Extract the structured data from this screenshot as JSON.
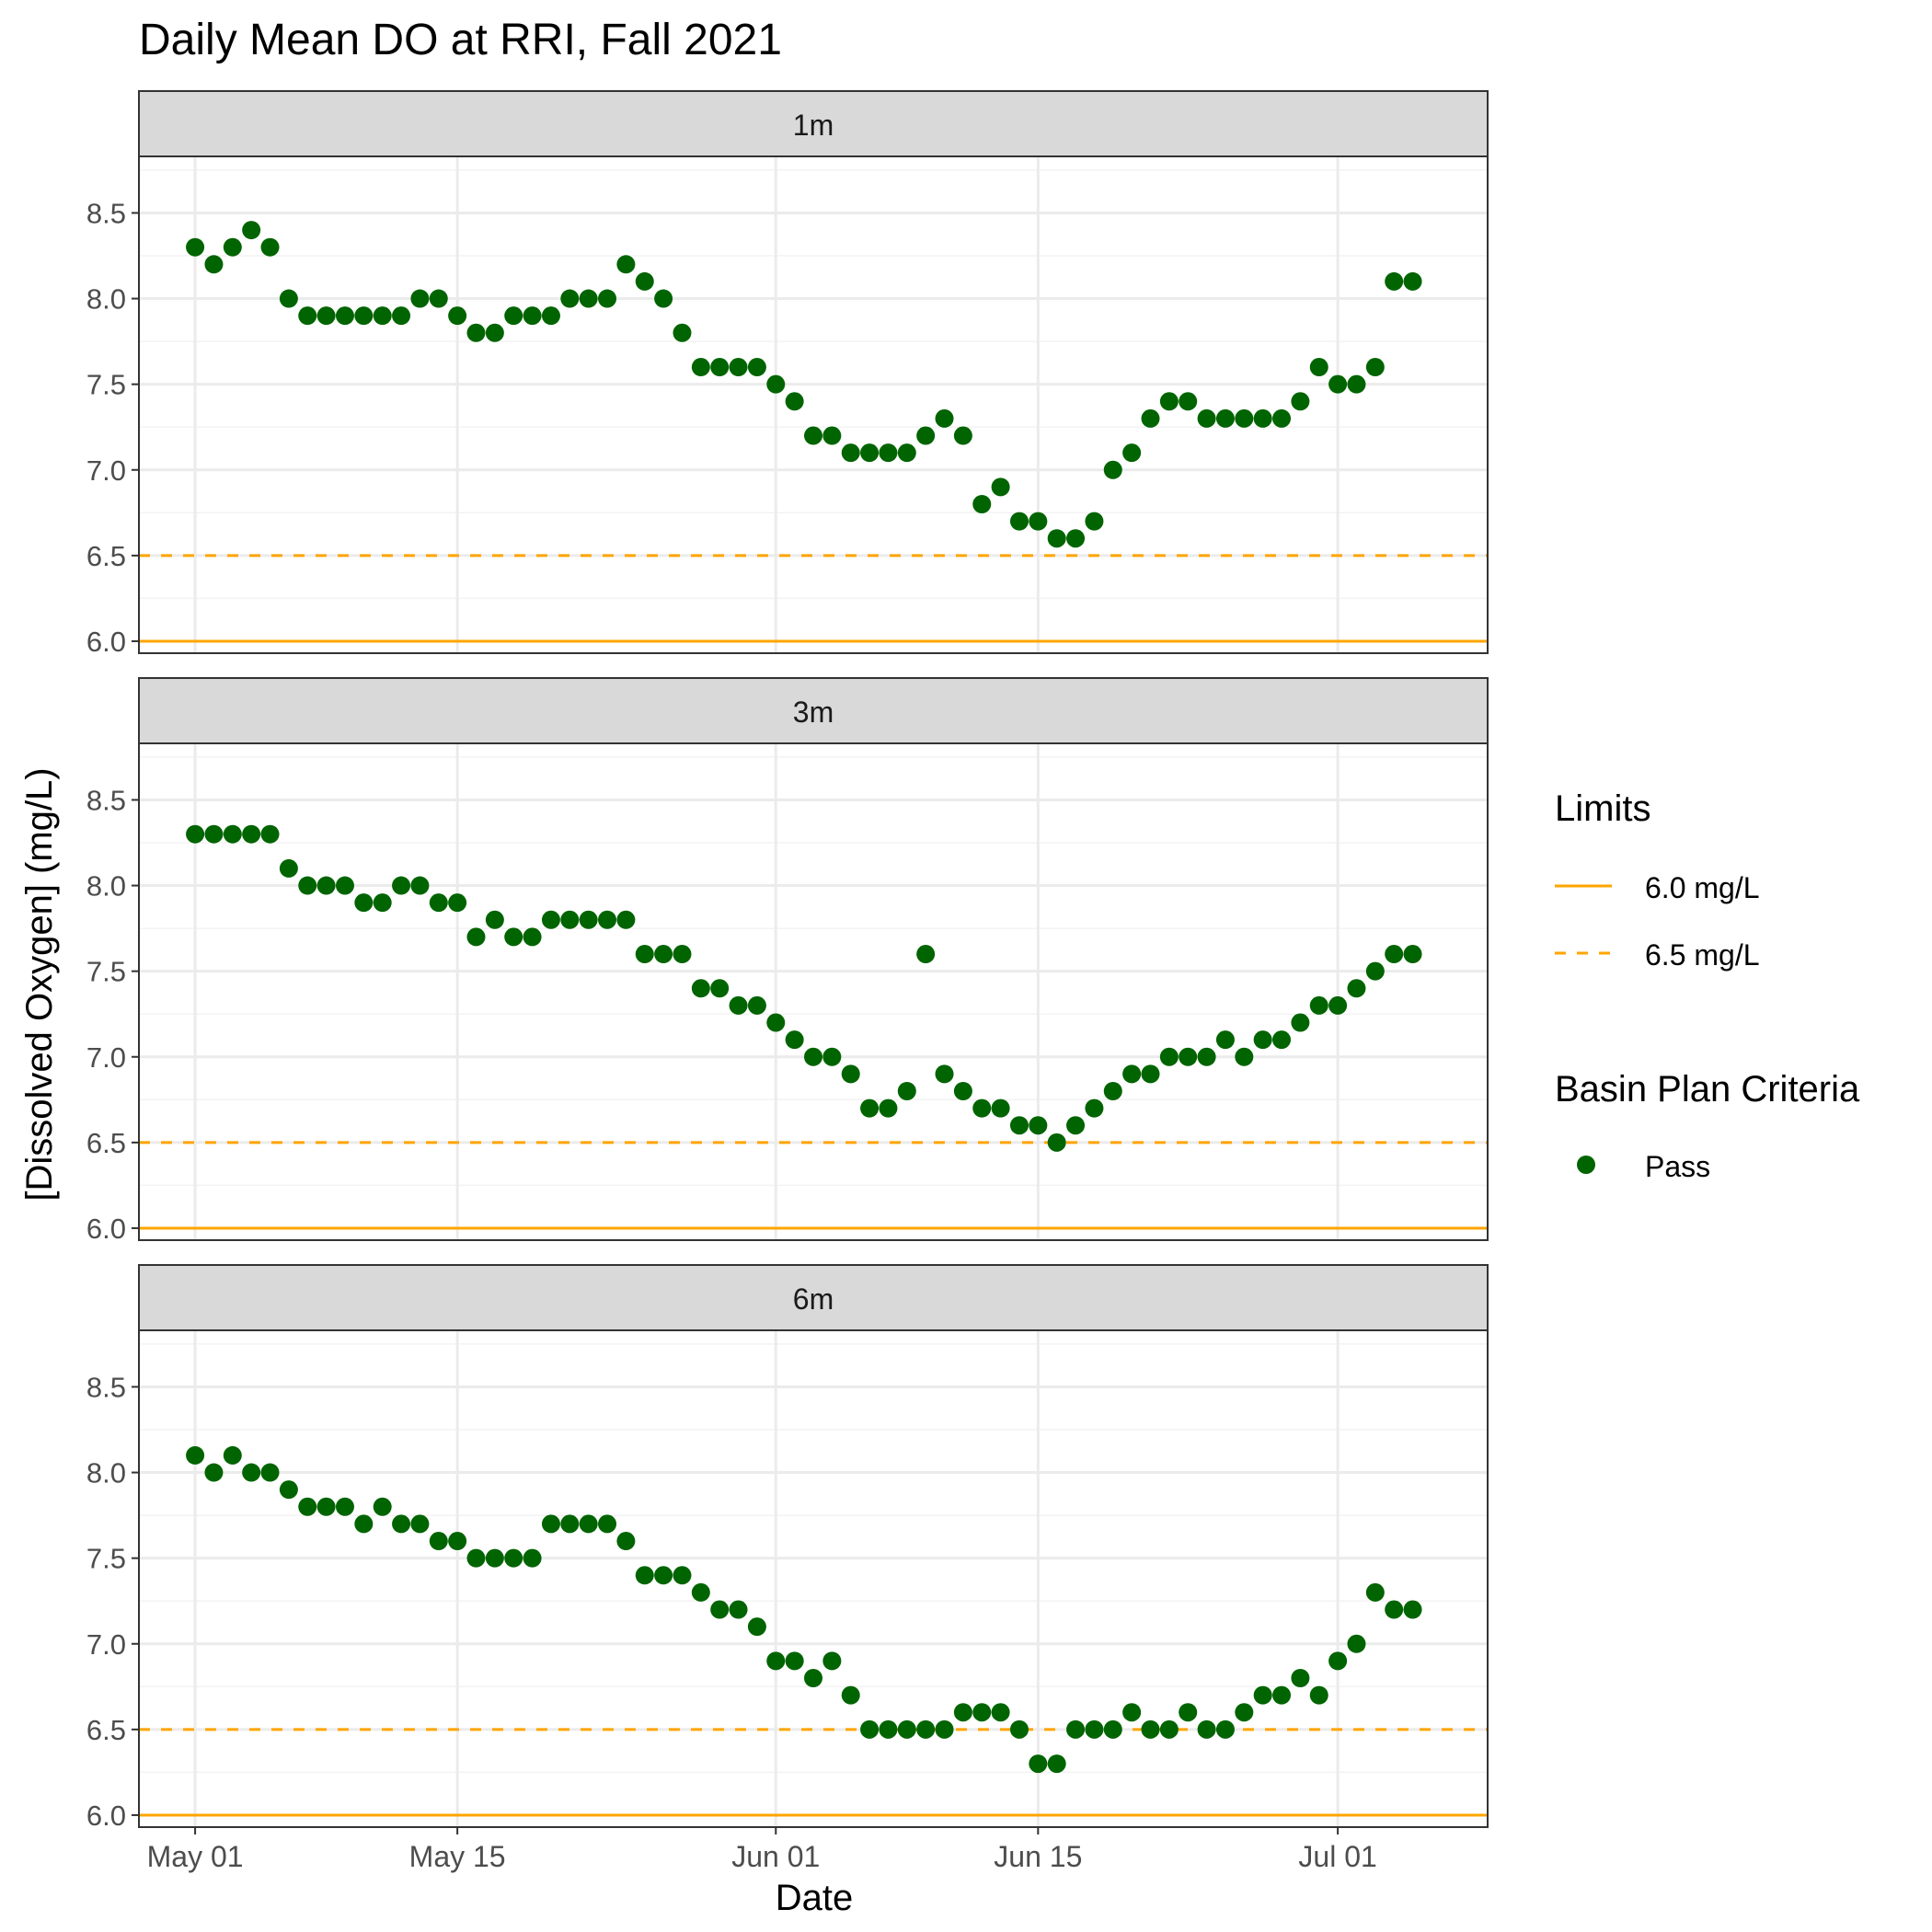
{
  "chart_data": {
    "type": "scatter",
    "title": "Daily Mean DO at RRI, Fall 2021",
    "xlabel": "Date",
    "ylabel": "[Dissolved Oxygen] (mg/L)",
    "x_start": "2021-05-01",
    "x_ticks": [
      {
        "date": "2021-05-01",
        "label": "May 01"
      },
      {
        "date": "2021-05-15",
        "label": "May 15"
      },
      {
        "date": "2021-06-01",
        "label": "Jun 01"
      },
      {
        "date": "2021-06-15",
        "label": "Jun 15"
      },
      {
        "date": "2021-07-01",
        "label": "Jul 01"
      }
    ],
    "xlim": [
      "2021-04-28",
      "2021-07-09"
    ],
    "ylim": [
      5.93,
      8.83
    ],
    "y_ticks": [
      {
        "value": 6.0,
        "label": "6.0"
      },
      {
        "value": 6.5,
        "label": "6.5"
      },
      {
        "value": 7.0,
        "label": "7.0"
      },
      {
        "value": 7.5,
        "label": "7.5"
      },
      {
        "value": 8.0,
        "label": "8.0"
      },
      {
        "value": 8.5,
        "label": "8.5"
      }
    ],
    "grid": true,
    "legend_position": "right",
    "limits": [
      {
        "value": 6.0,
        "label": "6.0 mg/L",
        "style": "solid",
        "color": "#FFA500"
      },
      {
        "value": 6.5,
        "label": "6.5 mg/L",
        "style": "dashed",
        "color": "#FFA500"
      }
    ],
    "legend": {
      "limits_title": "Limits",
      "criteria_title": "Basin Plan Criteria",
      "criteria_items": [
        {
          "label": "Pass",
          "color": "#006400"
        }
      ]
    },
    "panels": [
      {
        "label": "1m",
        "values": [
          8.3,
          8.2,
          8.3,
          8.4,
          8.3,
          8.0,
          7.9,
          7.9,
          7.9,
          7.9,
          7.9,
          7.9,
          8.0,
          8.0,
          7.9,
          7.8,
          7.8,
          7.9,
          7.9,
          7.9,
          8.0,
          8.0,
          8.0,
          8.2,
          8.1,
          8.0,
          7.8,
          7.6,
          7.6,
          7.6,
          7.6,
          7.5,
          7.4,
          7.2,
          7.2,
          7.1,
          7.1,
          7.1,
          7.1,
          7.2,
          7.3,
          7.2,
          6.8,
          6.9,
          6.7,
          6.7,
          6.6,
          6.6,
          6.7,
          7.0,
          7.1,
          7.3,
          7.4,
          7.4,
          7.3,
          7.3,
          7.3,
          7.3,
          7.3,
          7.4,
          7.6,
          7.5,
          7.5,
          7.6,
          8.1,
          8.1
        ]
      },
      {
        "label": "3m",
        "values": [
          8.3,
          8.3,
          8.3,
          8.3,
          8.3,
          8.1,
          8.0,
          8.0,
          8.0,
          7.9,
          7.9,
          8.0,
          8.0,
          7.9,
          7.9,
          7.7,
          7.8,
          7.7,
          7.7,
          7.8,
          7.8,
          7.8,
          7.8,
          7.8,
          7.6,
          7.6,
          7.6,
          7.4,
          7.4,
          7.3,
          7.3,
          7.2,
          7.1,
          7.0,
          7.0,
          6.9,
          6.7,
          6.7,
          6.8,
          7.6,
          6.9,
          6.8,
          6.7,
          6.7,
          6.6,
          6.6,
          6.5,
          6.6,
          6.7,
          6.8,
          6.9,
          6.9,
          7.0,
          7.0,
          7.0,
          7.1,
          7.0,
          7.1,
          7.1,
          7.2,
          7.3,
          7.3,
          7.4,
          7.5,
          7.6,
          7.6
        ]
      },
      {
        "label": "6m",
        "values": [
          8.1,
          8.0,
          8.1,
          8.0,
          8.0,
          7.9,
          7.8,
          7.8,
          7.8,
          7.7,
          7.8,
          7.7,
          7.7,
          7.6,
          7.6,
          7.5,
          7.5,
          7.5,
          7.5,
          7.7,
          7.7,
          7.7,
          7.7,
          7.6,
          7.4,
          7.4,
          7.4,
          7.3,
          7.2,
          7.2,
          7.1,
          6.9,
          6.9,
          6.8,
          6.9,
          6.7,
          6.5,
          6.5,
          6.5,
          6.5,
          6.5,
          6.6,
          6.6,
          6.6,
          6.5,
          6.3,
          6.3,
          6.5,
          6.5,
          6.5,
          6.6,
          6.5,
          6.5,
          6.6,
          6.5,
          6.5,
          6.6,
          6.7,
          6.7,
          6.8,
          6.7,
          6.9,
          7.0,
          7.3,
          7.2,
          7.2
        ]
      }
    ],
    "colors": {
      "point": "#006400",
      "limit": "#FFA500",
      "strip_bg": "#D9D9D9",
      "grid": "#EBEBEB",
      "frame": "#333333"
    }
  }
}
